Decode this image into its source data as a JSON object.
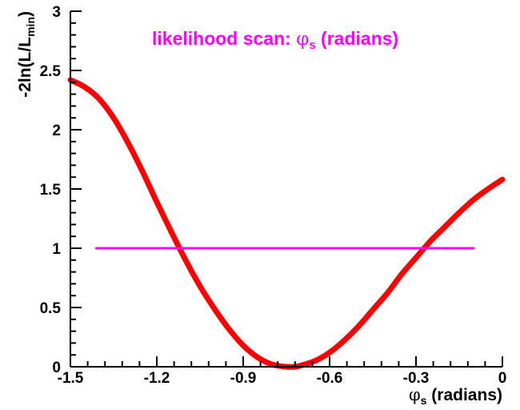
{
  "chart_data": {
    "type": "line",
    "title": {
      "prefix": "likelihood scan: ",
      "symbol": "φ",
      "subscript": "s",
      "suffix": " (radians)"
    },
    "xlabel": {
      "symbol": "φ",
      "subscript": "s",
      "suffix": " (radians)"
    },
    "ylabel": {
      "prefix": "-2ln(L/L",
      "subscript": "min",
      "suffix": ")"
    },
    "xlim": [
      -1.5,
      0
    ],
    "ylim": [
      0,
      3
    ],
    "x_tick_labels": [
      "-1.5",
      "-1.2",
      "-0.9",
      "-0.6",
      "-0.3",
      "0"
    ],
    "y_tick_labels": [
      "0",
      "0.5",
      "1",
      "1.5",
      "2",
      "2.5",
      "3"
    ],
    "grid": false,
    "colors": {
      "curve": "#ff0000",
      "reference_line": "#ff00ff",
      "title": "#ff00ff",
      "axes": "#000000"
    },
    "series": [
      {
        "x": [
          -1.5,
          -1.45,
          -1.4,
          -1.35,
          -1.3,
          -1.25,
          -1.2,
          -1.15,
          -1.1,
          -1.05,
          -1.0,
          -0.95,
          -0.9,
          -0.85,
          -0.8,
          -0.75,
          -0.72,
          -0.7,
          -0.65,
          -0.6,
          -0.55,
          -0.5,
          -0.45,
          -0.4,
          -0.35,
          -0.3,
          -0.25,
          -0.2,
          -0.15,
          -0.1,
          -0.05,
          0.0
        ],
        "y": [
          2.42,
          2.36,
          2.26,
          2.1,
          1.89,
          1.65,
          1.39,
          1.14,
          0.9,
          0.68,
          0.49,
          0.32,
          0.18,
          0.08,
          0.02,
          0.0,
          0.0,
          0.01,
          0.05,
          0.12,
          0.22,
          0.34,
          0.48,
          0.62,
          0.78,
          0.92,
          1.06,
          1.18,
          1.3,
          1.41,
          1.5,
          1.58
        ]
      },
      {
        "x": [
          -1.41,
          -0.1
        ],
        "y": [
          1.0,
          1.0
        ]
      }
    ]
  }
}
